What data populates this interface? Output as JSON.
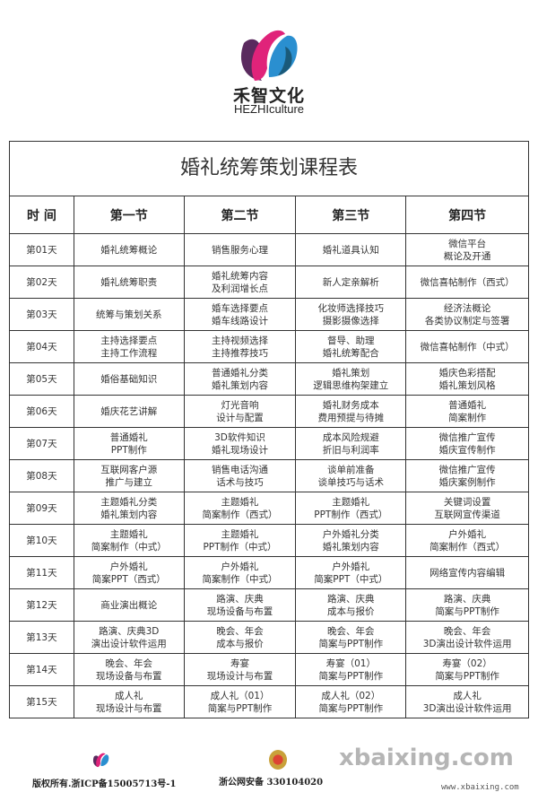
{
  "brand": {
    "name_cn": "禾智文化",
    "name_en": "HEZHIculture",
    "colors": {
      "magenta": "#e0237a",
      "blue": "#2a8fd0",
      "purple": "#5a2a5e"
    }
  },
  "table": {
    "title": "婚礼统筹策划课程表",
    "headers": [
      "时 间",
      "第一节",
      "第二节",
      "第三节",
      "第四节"
    ],
    "rows": [
      {
        "day": "第01天",
        "cells": [
          [
            "婚礼统筹概论"
          ],
          [
            "销售服务心理"
          ],
          [
            "婚礼道具认知"
          ],
          [
            "微信平台",
            "概论及开通"
          ]
        ]
      },
      {
        "day": "第02天",
        "cells": [
          [
            "婚礼统筹职责"
          ],
          [
            "婚礼统筹内容",
            "及利润增长点"
          ],
          [
            "新人定亲解析"
          ],
          [
            "微信喜帖制作（西式）"
          ]
        ]
      },
      {
        "day": "第03天",
        "cells": [
          [
            "统筹与策划关系"
          ],
          [
            "婚车选择要点",
            "婚车线路设计"
          ],
          [
            "化妆师选择技巧",
            "摄影摄像选择"
          ],
          [
            "经济法概论",
            "各类协议制定与签署"
          ]
        ]
      },
      {
        "day": "第04天",
        "cells": [
          [
            "主持选择要点",
            "主持工作流程"
          ],
          [
            "主持视频选择",
            "主持推荐技巧"
          ],
          [
            "督导、助理",
            "婚礼统筹配合"
          ],
          [
            "微信喜帖制作（中式）"
          ]
        ]
      },
      {
        "day": "第05天",
        "cells": [
          [
            "婚俗基础知识"
          ],
          [
            "普通婚礼分类",
            "婚礼策划内容"
          ],
          [
            "婚礼策划",
            "逻辑思维构架建立"
          ],
          [
            "婚庆色彩搭配",
            "婚礼策划风格"
          ]
        ]
      },
      {
        "day": "第06天",
        "cells": [
          [
            "婚庆花艺讲解"
          ],
          [
            "灯光音响",
            "设计与配置"
          ],
          [
            "婚礼财务成本",
            "费用预提与待摊"
          ],
          [
            "普通婚礼",
            "简案制作"
          ]
        ]
      },
      {
        "day": "第07天",
        "cells": [
          [
            "普通婚礼",
            "PPT制作"
          ],
          [
            "3D软件知识",
            "婚礼现场设计"
          ],
          [
            "成本风险规避",
            "折旧与利润率"
          ],
          [
            "微信推广宣传",
            "婚庆宣传制作"
          ]
        ]
      },
      {
        "day": "第08天",
        "cells": [
          [
            "互联网客户源",
            "推广与建立"
          ],
          [
            "销售电话沟通",
            "话术与技巧"
          ],
          [
            "谈单前准备",
            "谈单技巧与话术"
          ],
          [
            "微信推广宣传",
            "婚庆案例制作"
          ]
        ]
      },
      {
        "day": "第09天",
        "cells": [
          [
            "主题婚礼分类",
            "婚礼策划内容"
          ],
          [
            "主题婚礼",
            "简案制作（西式）"
          ],
          [
            "主题婚礼",
            "PPT制作（西式）"
          ],
          [
            "关键词设置",
            "互联网宣传渠道"
          ]
        ]
      },
      {
        "day": "第10天",
        "cells": [
          [
            "主题婚礼",
            "简案制作（中式）"
          ],
          [
            "主题婚礼",
            "PPT制作（中式）"
          ],
          [
            "户外婚礼分类",
            "婚礼策划内容"
          ],
          [
            "户外婚礼",
            "简案制作（西式）"
          ]
        ]
      },
      {
        "day": "第11天",
        "cells": [
          [
            "户外婚礼",
            "简案PPT（西式）"
          ],
          [
            "户外婚礼",
            "简案制作（中式）"
          ],
          [
            "户外婚礼",
            "简案PPT（中式）"
          ],
          [
            "网络宣传内容编辑"
          ]
        ]
      },
      {
        "day": "第12天",
        "cells": [
          [
            "商业演出概论"
          ],
          [
            "路演、庆典",
            "现场设备与布置"
          ],
          [
            "路演、庆典",
            "成本与报价"
          ],
          [
            "路演、庆典",
            "简案与PPT制作"
          ]
        ]
      },
      {
        "day": "第13天",
        "cells": [
          [
            "路演、庆典3D",
            "演出设计软件运用"
          ],
          [
            "晚会、年会",
            "成本与报价"
          ],
          [
            "晚会、年会",
            "简案与PPT制作"
          ],
          [
            "晚会、年会",
            "3D演出设计软件运用"
          ]
        ]
      },
      {
        "day": "第14天",
        "cells": [
          [
            "晚会、年会",
            "现场设备与布置"
          ],
          [
            "寿宴",
            "现场设计与布置"
          ],
          [
            "寿宴（01）",
            "简案与PPT制作"
          ],
          [
            "寿宴（02）",
            "简案与PPT制作"
          ]
        ]
      },
      {
        "day": "第15天",
        "cells": [
          [
            "成人礼",
            "现场设计与布置"
          ],
          [
            "成人礼（01）",
            "简案与PPT制作"
          ],
          [
            "成人礼（02）",
            "简案与PPT制作"
          ],
          [
            "成人礼",
            "3D演出设计软件运用"
          ]
        ]
      }
    ]
  },
  "footer": {
    "copyright": "版权所有.浙ICP备15005713号-1",
    "police": "浙公网安备 330104020",
    "watermark": "xbaixing.com",
    "watermark_url": "www.xbaixing.com"
  }
}
